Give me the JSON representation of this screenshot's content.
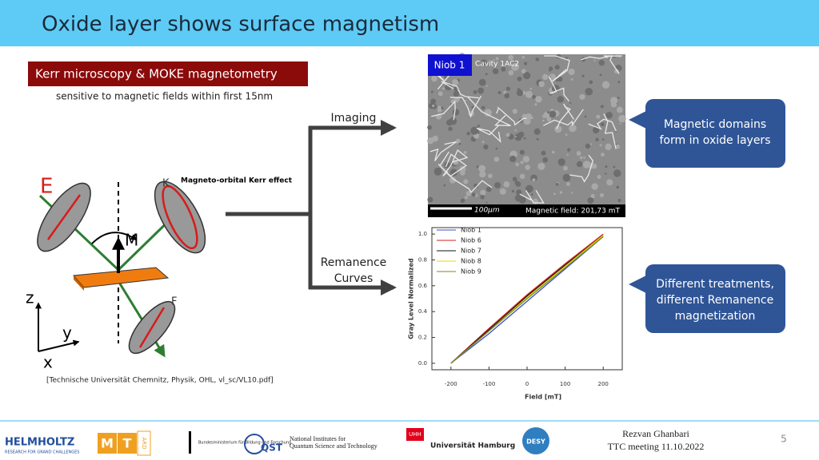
{
  "header": {
    "title": "Oxide layer shows surface magnetism"
  },
  "method": {
    "label": "Kerr microscopy & MOKE magnetometry",
    "note": "sensitive to magnetic fields within first 15nm"
  },
  "flow": {
    "imaging": "Imaging",
    "remanence": [
      "Remanence",
      "Curves"
    ]
  },
  "diagram": {
    "caption": "Magneto-orbital Kerr effect",
    "labels": {
      "e": "E",
      "m": "M",
      "k": "K",
      "f": "F",
      "z": "z",
      "y": "y",
      "x": "x"
    },
    "source": "[Technische Universität Chemnitz, Physik, OHL, vl_sc/VL10.pdf]"
  },
  "image": {
    "tag": "Niob 1",
    "sample": "Cavity 1AC2",
    "scale": "100μm",
    "field": "Magnetic field: 201,73 mT"
  },
  "callouts": [
    [
      "Magnetic domains",
      "form in oxide layers"
    ],
    [
      "Different treatments,",
      "different Remanence",
      "magnetization"
    ]
  ],
  "chart_data": {
    "type": "line",
    "xlabel": "Field [mT]",
    "ylabel": "Gray Level Normalized",
    "x": [
      -200,
      -100,
      0,
      100,
      200
    ],
    "series": [
      {
        "name": "Niob 1",
        "color": "#3a4fc0",
        "values": [
          0.0,
          0.23,
          0.48,
          0.73,
          0.98
        ]
      },
      {
        "name": "Niob 6",
        "color": "#d62020",
        "values": [
          0.0,
          0.27,
          0.53,
          0.77,
          1.0
        ]
      },
      {
        "name": "Niob 7",
        "color": "#111111",
        "values": [
          0.0,
          0.26,
          0.52,
          0.76,
          0.99
        ]
      },
      {
        "name": "Niob 8",
        "color": "#e8d800",
        "values": [
          0.0,
          0.25,
          0.51,
          0.75,
          0.99
        ]
      },
      {
        "name": "Niob 9",
        "color": "#7a8a2a",
        "values": [
          0.0,
          0.25,
          0.5,
          0.74,
          0.98
        ]
      }
    ],
    "xlim": [
      -250,
      250
    ],
    "ylim": [
      -0.05,
      1.05
    ],
    "xticks": [
      -200,
      -100,
      0,
      100,
      200
    ],
    "yticks": [
      {
        "value": 0,
        "label": "0.0"
      },
      0.2,
      0.4,
      0.6,
      0.8,
      {
        "value": 1,
        "label": "1.0"
      }
    ],
    "legend": "upper left"
  },
  "footer": {
    "logos": [
      "HELMHOLTZ",
      "RESEARCH FOR GRAND CHALLENGES",
      "M",
      "T",
      "ARD",
      "Bundesministerium für Bildung und Forschung",
      "QST",
      "National Institutes for",
      "Quantum Science and Technology",
      "UHH",
      "Universität Hamburg",
      "DESY"
    ],
    "presenter": "Rezvan Ghanbari",
    "event": "TTC meeting 11.10.2022",
    "page": 5
  }
}
